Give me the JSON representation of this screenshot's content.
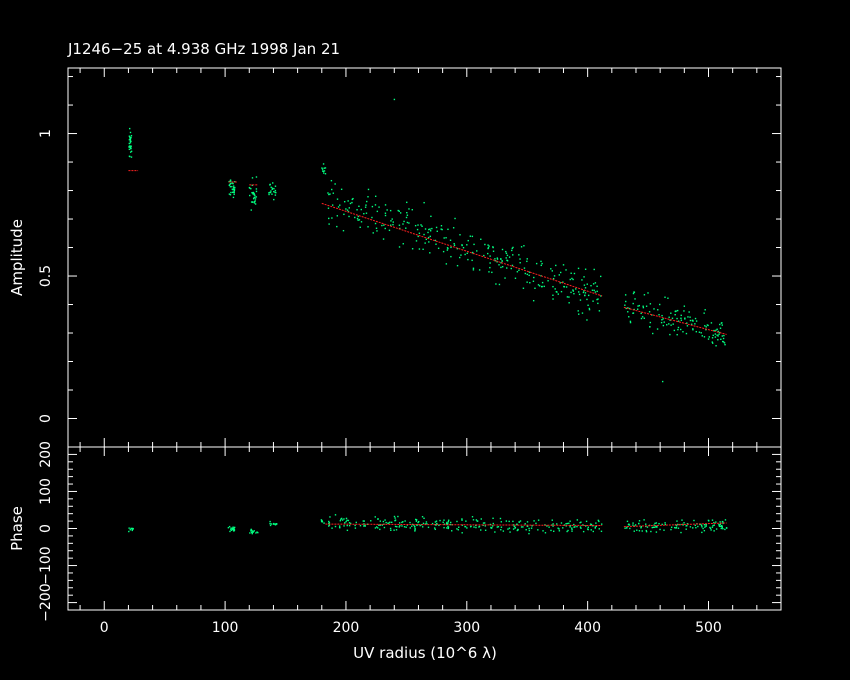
{
  "chart_data": [
    {
      "type": "scatter",
      "title": "J1246−25 at 4.938 GHz 1998 Jan 21",
      "xlabel": "UV radius  (10^6 λ)",
      "ylabel": "Amplitude",
      "xlim": [
        -30,
        560
      ],
      "ylim": [
        -0.1,
        1.23
      ],
      "xticks": [
        0,
        100,
        200,
        300,
        400,
        500
      ],
      "yticks": [
        0,
        0.5,
        1
      ],
      "ytick_labels": [
        "0",
        "0.5",
        "1"
      ],
      "series": [
        {
          "color": "#00ff80",
          "kind": "observed points",
          "clusters": [
            {
              "x_range": [
                20,
                23
              ],
              "y_mean": 0.96,
              "y_spread": 0.05,
              "n": 30
            },
            {
              "x_range": [
                103,
                108
              ],
              "y_mean": 0.81,
              "y_spread": 0.03,
              "n": 30
            },
            {
              "x_range": [
                120,
                126
              ],
              "y_mean": 0.79,
              "y_spread": 0.05,
              "n": 30
            },
            {
              "x_range": [
                136,
                143
              ],
              "y_mean": 0.8,
              "y_spread": 0.03,
              "n": 20
            },
            {
              "x_range": [
                180,
                183
              ],
              "y_mean": 0.87,
              "y_spread": 0.02,
              "n": 10
            }
          ],
          "trend_scatter": {
            "x_range": [
              185,
              412
            ],
            "y_start": 0.77,
            "y_end": 0.43,
            "scatter": 0.08,
            "n": 320
          },
          "trend_scatter_2": {
            "x_range": [
              430,
              515
            ],
            "y_start": 0.39,
            "y_end": 0.29,
            "scatter": 0.06,
            "n": 140
          },
          "outliers": [
            {
              "x": 240,
              "y": 1.12
            },
            {
              "x": 462,
              "y": 0.13
            }
          ]
        },
        {
          "color": "#ff2020",
          "kind": "model",
          "segments": [
            {
              "x": [
                20,
                28
              ],
              "y": [
                0.87,
                0.87
              ]
            },
            {
              "x": [
                103,
                110
              ],
              "y": [
                0.83,
                0.83
              ]
            },
            {
              "x": [
                120,
                127
              ],
              "y": [
                0.82,
                0.82
              ]
            },
            {
              "x": [
                180,
                412
              ],
              "y": [
                0.755,
                0.43
              ]
            },
            {
              "x": [
                430,
                515
              ],
              "y": [
                0.39,
                0.295
              ]
            }
          ]
        }
      ]
    },
    {
      "type": "scatter",
      "xlabel": "UV radius  (10^6 λ)",
      "ylabel": "Phase",
      "xlim": [
        -30,
        560
      ],
      "ylim": [
        -220,
        220
      ],
      "xticks": [
        0,
        100,
        200,
        300,
        400,
        500
      ],
      "yticks": [
        -200,
        -100,
        0,
        100,
        200
      ],
      "ytick_labels": [
        "−200",
        "−100",
        "0",
        "100",
        "200"
      ],
      "series": [
        {
          "color": "#00ff80",
          "kind": "observed points",
          "clusters": [
            {
              "x_range": [
                20,
                24
              ],
              "y_mean": 0,
              "y_spread": 10,
              "n": 10
            },
            {
              "x_range": [
                102,
                108
              ],
              "y_mean": 0,
              "y_spread": 8,
              "n": 20
            },
            {
              "x_range": [
                120,
                127
              ],
              "y_mean": -8,
              "y_spread": 6,
              "n": 15
            },
            {
              "x_range": [
                136,
                143
              ],
              "y_mean": 14,
              "y_spread": 6,
              "n": 12
            },
            {
              "x_range": [
                179,
                182
              ],
              "y_mean": 20,
              "y_spread": 6,
              "n": 6
            }
          ],
          "trend_scatter": {
            "x_range": [
              185,
              412
            ],
            "y_start": 15,
            "y_end": 5,
            "scatter": 18,
            "n": 280
          },
          "trend_scatter_2": {
            "x_range": [
              430,
              515
            ],
            "y_start": 5,
            "y_end": 10,
            "scatter": 18,
            "n": 120
          }
        },
        {
          "color": "#ff2020",
          "kind": "model",
          "segments": [
            {
              "x": [
                183,
                412
              ],
              "y": [
                12,
                8
              ]
            },
            {
              "x": [
                430,
                515
              ],
              "y": [
                5,
                15
              ]
            }
          ]
        }
      ]
    }
  ]
}
